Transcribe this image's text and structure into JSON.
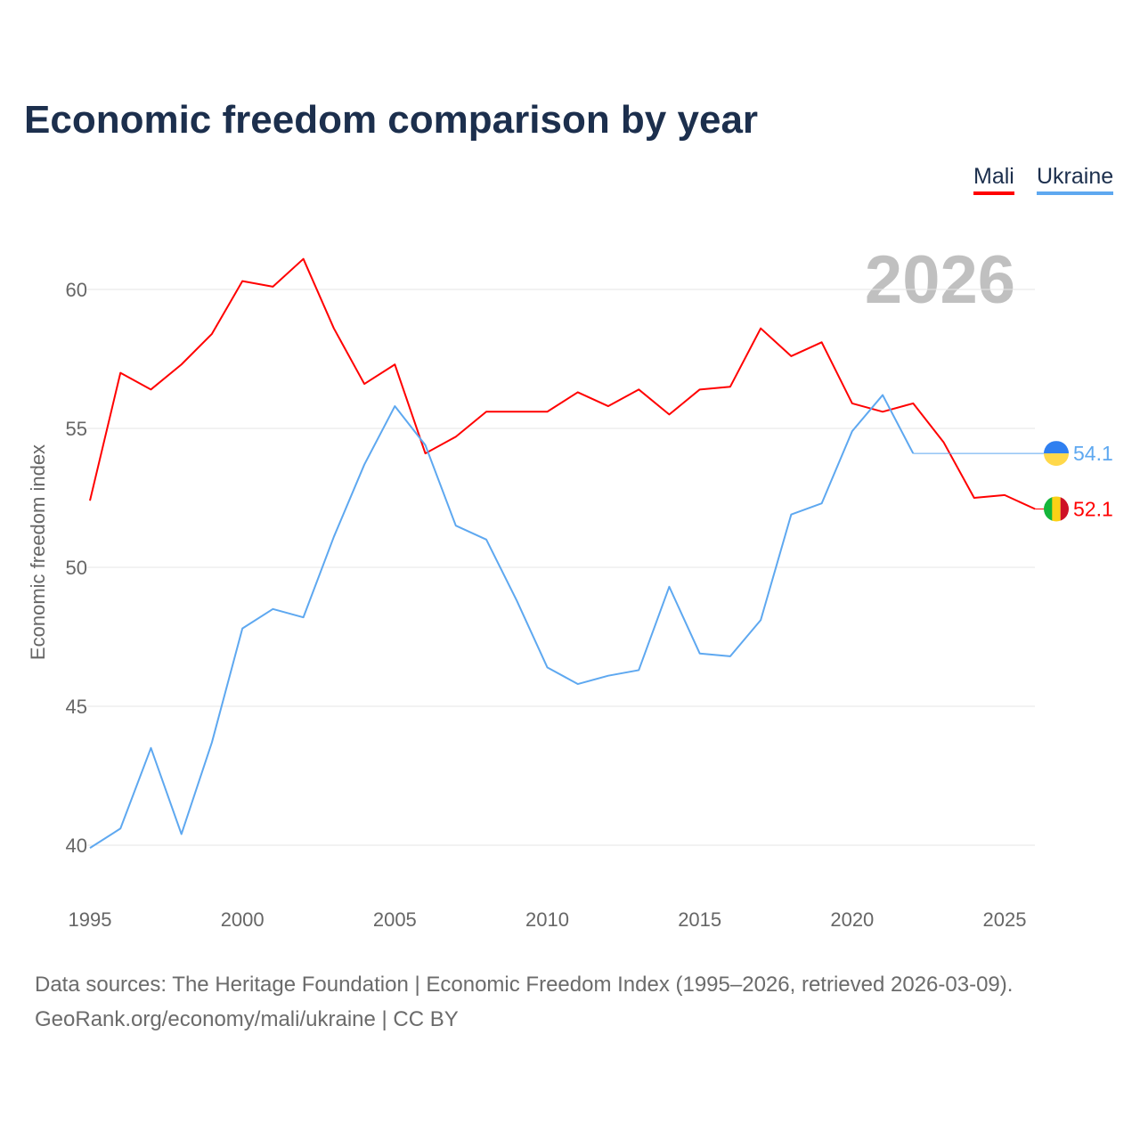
{
  "chart_data": {
    "type": "line",
    "title": "Economic freedom comparison by year",
    "xlabel": "",
    "ylabel": "Economic freedom index",
    "xlim": [
      1995,
      2026
    ],
    "ylim": [
      38.5,
      62
    ],
    "yticks": [
      40,
      45,
      50,
      55,
      60
    ],
    "xticks": [
      1995,
      2000,
      2005,
      2010,
      2015,
      2020,
      2025
    ],
    "grid": true,
    "legend_position": "top-right",
    "year_label": "2026",
    "series": [
      {
        "name": "Mali",
        "color": "#ff0000",
        "end_label": "52.1",
        "x": [
          1995,
          1996,
          1997,
          1998,
          1999,
          2000,
          2001,
          2002,
          2003,
          2004,
          2005,
          2006,
          2007,
          2008,
          2009,
          2010,
          2011,
          2012,
          2013,
          2014,
          2015,
          2016,
          2017,
          2018,
          2019,
          2020,
          2021,
          2022,
          2023,
          2024,
          2025,
          2026
        ],
        "values": [
          52.4,
          57.0,
          56.4,
          57.3,
          58.4,
          60.3,
          60.1,
          61.1,
          58.6,
          56.6,
          57.3,
          54.1,
          54.7,
          55.6,
          55.6,
          55.6,
          56.3,
          55.8,
          56.4,
          55.5,
          56.4,
          56.5,
          58.6,
          57.6,
          58.1,
          55.9,
          55.6,
          55.9,
          54.5,
          52.5,
          52.6,
          52.1
        ]
      },
      {
        "name": "Ukraine",
        "color": "#5ea8f0",
        "end_label": "54.1",
        "x": [
          1995,
          1996,
          1997,
          1998,
          1999,
          2000,
          2001,
          2002,
          2003,
          2004,
          2005,
          2006,
          2007,
          2008,
          2009,
          2010,
          2011,
          2012,
          2013,
          2014,
          2015,
          2016,
          2017,
          2018,
          2019,
          2020,
          2021,
          2022
        ],
        "values": [
          39.9,
          40.6,
          43.5,
          40.4,
          43.7,
          47.8,
          48.5,
          48.2,
          51.1,
          53.7,
          55.8,
          54.4,
          51.5,
          51.0,
          48.8,
          46.4,
          45.8,
          46.1,
          46.3,
          49.3,
          46.9,
          46.8,
          48.1,
          51.9,
          52.3,
          54.9,
          56.2,
          54.1
        ]
      }
    ]
  },
  "footer": {
    "line1": "Data sources: The Heritage Foundation | Economic Freedom Index (1995–2026, retrieved 2026-03-09).",
    "line2": "GeoRank.org/economy/mali/ukraine | CC BY"
  }
}
